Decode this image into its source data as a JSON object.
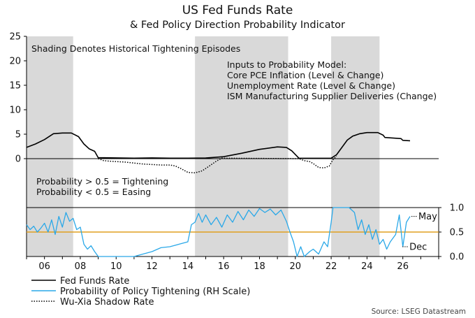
{
  "chart_data": {
    "type": "line",
    "title": "US Fed Funds Rate",
    "subtitle": "& Fed Policy Direction Probability Indicator",
    "source": "Source: LSEG Datastream",
    "shading_note": "Shading Denotes Historical Tightening Episodes",
    "model_inputs": [
      "Inputs to Probability Model:",
      "Core PCE Inflation (Level & Change)",
      "Unemployment Rate (Level & Change)",
      "ISM Manufacturing Supplier Deliveries (Change)"
    ],
    "probability_notes": [
      "Probability > 0.5 = Tightening",
      "Probability < 0.5 = Easing"
    ],
    "x_tick_labels": [
      "06",
      "08",
      "10",
      "12",
      "14",
      "16",
      "18",
      "20",
      "22",
      "24",
      "26"
    ],
    "x_tick_years": [
      2006,
      2008,
      2010,
      2012,
      2014,
      2016,
      2018,
      2020,
      2022,
      2024,
      2026
    ],
    "xlim": [
      2005,
      2028
    ],
    "left_axis": {
      "ticks": [
        0,
        5,
        10,
        15,
        20,
        25
      ],
      "ylim": [
        -10,
        25
      ]
    },
    "right_axis": {
      "ticks": [
        "0.0",
        "0.5",
        "1.0"
      ],
      "ylim": [
        0,
        1
      ]
    },
    "threshold": 0.5,
    "shading_periods": [
      [
        2005.0,
        2007.6
      ],
      [
        2014.4,
        2019.6
      ],
      [
        2022.0,
        2024.7
      ]
    ],
    "annotations": [
      {
        "text": "May",
        "x": 2026.4,
        "y": 0.82
      },
      {
        "text": "Dec",
        "x": 2025.9,
        "y": 0.2
      }
    ],
    "series": [
      {
        "name": "Fed Funds Rate",
        "axis": "left",
        "color": "#000000",
        "style": "solid",
        "points": [
          [
            2005.0,
            2.3
          ],
          [
            2005.5,
            3.0
          ],
          [
            2006.0,
            3.9
          ],
          [
            2006.5,
            5.1
          ],
          [
            2007.0,
            5.25
          ],
          [
            2007.5,
            5.25
          ],
          [
            2007.9,
            4.5
          ],
          [
            2008.2,
            3.0
          ],
          [
            2008.5,
            2.0
          ],
          [
            2008.8,
            1.5
          ],
          [
            2009.0,
            0.2
          ],
          [
            2010.0,
            0.15
          ],
          [
            2011.0,
            0.1
          ],
          [
            2012.0,
            0.15
          ],
          [
            2013.0,
            0.1
          ],
          [
            2014.0,
            0.1
          ],
          [
            2015.0,
            0.13
          ],
          [
            2016.0,
            0.4
          ],
          [
            2017.0,
            1.1
          ],
          [
            2018.0,
            1.9
          ],
          [
            2019.0,
            2.4
          ],
          [
            2019.5,
            2.3
          ],
          [
            2019.8,
            1.6
          ],
          [
            2020.2,
            0.1
          ],
          [
            2021.0,
            0.08
          ],
          [
            2022.0,
            0.1
          ],
          [
            2022.3,
            0.8
          ],
          [
            2022.6,
            2.3
          ],
          [
            2022.9,
            3.8
          ],
          [
            2023.2,
            4.6
          ],
          [
            2023.6,
            5.1
          ],
          [
            2024.0,
            5.33
          ],
          [
            2024.6,
            5.33
          ],
          [
            2024.9,
            4.8
          ],
          [
            2025.0,
            4.33
          ],
          [
            2025.9,
            4.1
          ],
          [
            2026.0,
            3.75
          ],
          [
            2026.4,
            3.65
          ]
        ]
      },
      {
        "name": "Probability of Policy Tightening (RH Scale)",
        "axis": "right",
        "color": "#2aa8e8",
        "style": "solid",
        "points": [
          [
            2005.0,
            0.65
          ],
          [
            2005.2,
            0.55
          ],
          [
            2005.4,
            0.62
          ],
          [
            2005.6,
            0.5
          ],
          [
            2005.8,
            0.58
          ],
          [
            2006.0,
            0.68
          ],
          [
            2006.2,
            0.5
          ],
          [
            2006.4,
            0.75
          ],
          [
            2006.6,
            0.45
          ],
          [
            2006.8,
            0.82
          ],
          [
            2007.0,
            0.6
          ],
          [
            2007.2,
            0.9
          ],
          [
            2007.4,
            0.72
          ],
          [
            2007.6,
            0.78
          ],
          [
            2007.8,
            0.55
          ],
          [
            2008.0,
            0.6
          ],
          [
            2008.2,
            0.25
          ],
          [
            2008.4,
            0.15
          ],
          [
            2008.6,
            0.22
          ],
          [
            2008.8,
            0.1
          ],
          [
            2009.0,
            0.0
          ],
          [
            2010.0,
            0.0
          ],
          [
            2011.0,
            0.0
          ],
          [
            2011.5,
            0.05
          ],
          [
            2012.0,
            0.1
          ],
          [
            2012.5,
            0.18
          ],
          [
            2013.0,
            0.2
          ],
          [
            2013.5,
            0.25
          ],
          [
            2014.0,
            0.3
          ],
          [
            2014.2,
            0.65
          ],
          [
            2014.4,
            0.7
          ],
          [
            2014.6,
            0.88
          ],
          [
            2014.8,
            0.7
          ],
          [
            2015.0,
            0.85
          ],
          [
            2015.3,
            0.65
          ],
          [
            2015.6,
            0.8
          ],
          [
            2015.9,
            0.6
          ],
          [
            2016.2,
            0.85
          ],
          [
            2016.5,
            0.7
          ],
          [
            2016.8,
            0.92
          ],
          [
            2017.1,
            0.75
          ],
          [
            2017.4,
            0.95
          ],
          [
            2017.7,
            0.82
          ],
          [
            2018.0,
            0.98
          ],
          [
            2018.3,
            0.9
          ],
          [
            2018.6,
            0.97
          ],
          [
            2018.9,
            0.85
          ],
          [
            2019.2,
            0.95
          ],
          [
            2019.5,
            0.72
          ],
          [
            2019.7,
            0.5
          ],
          [
            2019.9,
            0.3
          ],
          [
            2020.1,
            0.0
          ],
          [
            2020.3,
            0.2
          ],
          [
            2020.5,
            0.0
          ],
          [
            2020.8,
            0.1
          ],
          [
            2021.0,
            0.15
          ],
          [
            2021.3,
            0.05
          ],
          [
            2021.6,
            0.3
          ],
          [
            2021.8,
            0.2
          ],
          [
            2022.0,
            0.7
          ],
          [
            2022.1,
            1.0
          ],
          [
            2022.5,
            1.0
          ],
          [
            2023.0,
            1.0
          ],
          [
            2023.3,
            0.9
          ],
          [
            2023.5,
            0.55
          ],
          [
            2023.7,
            0.75
          ],
          [
            2023.9,
            0.45
          ],
          [
            2024.1,
            0.65
          ],
          [
            2024.3,
            0.35
          ],
          [
            2024.5,
            0.55
          ],
          [
            2024.7,
            0.25
          ],
          [
            2024.9,
            0.35
          ],
          [
            2025.1,
            0.15
          ],
          [
            2025.3,
            0.3
          ],
          [
            2025.6,
            0.45
          ],
          [
            2025.8,
            0.85
          ],
          [
            2026.0,
            0.2
          ],
          [
            2026.2,
            0.7
          ],
          [
            2026.4,
            0.82
          ]
        ]
      },
      {
        "name": "Wu-Xia Shadow Rate",
        "axis": "left",
        "color": "#000000",
        "style": "dotted",
        "points": [
          [
            2009.0,
            0.0
          ],
          [
            2009.3,
            -0.4
          ],
          [
            2009.6,
            -0.5
          ],
          [
            2010.0,
            -0.6
          ],
          [
            2010.5,
            -0.7
          ],
          [
            2011.0,
            -0.9
          ],
          [
            2011.5,
            -1.1
          ],
          [
            2012.0,
            -1.2
          ],
          [
            2012.5,
            -1.3
          ],
          [
            2013.0,
            -1.3
          ],
          [
            2013.3,
            -1.5
          ],
          [
            2013.6,
            -2.0
          ],
          [
            2014.0,
            -2.8
          ],
          [
            2014.4,
            -2.9
          ],
          [
            2014.8,
            -2.5
          ],
          [
            2015.2,
            -1.5
          ],
          [
            2015.6,
            -0.5
          ],
          [
            2015.9,
            0.1
          ],
          [
            2020.2,
            0.0
          ],
          [
            2020.5,
            -0.4
          ],
          [
            2020.8,
            -0.6
          ],
          [
            2021.0,
            -1.0
          ],
          [
            2021.3,
            -1.8
          ],
          [
            2021.6,
            -1.9
          ],
          [
            2021.9,
            -1.5
          ],
          [
            2022.1,
            -0.2
          ],
          [
            2022.3,
            0.5
          ]
        ]
      }
    ]
  }
}
